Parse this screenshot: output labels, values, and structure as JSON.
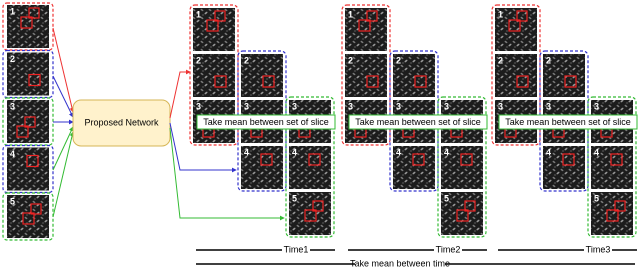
{
  "left_slices": [
    "1",
    "2",
    "3",
    "4",
    "5"
  ],
  "network": "Proposed Network",
  "groups": [
    {
      "columns": [
        [
          "1",
          "2",
          "3"
        ],
        [
          "2",
          "3",
          "4"
        ],
        [
          "3",
          "4",
          "5"
        ]
      ],
      "note": "Take mean between set of slice",
      "time": "Time1"
    },
    {
      "columns": [
        [
          "1",
          "2",
          "3"
        ],
        [
          "2",
          "3",
          "4"
        ],
        [
          "3",
          "4",
          "5"
        ]
      ],
      "note": "Take mean between set of slice",
      "time": "Time2"
    },
    {
      "columns": [
        [
          "1",
          "2",
          "3"
        ],
        [
          "2",
          "3",
          "4"
        ],
        [
          "3",
          "4",
          "5"
        ]
      ],
      "note": "Take mean between set of slice",
      "time": "Time3"
    }
  ],
  "footer": "Take mean between time"
}
